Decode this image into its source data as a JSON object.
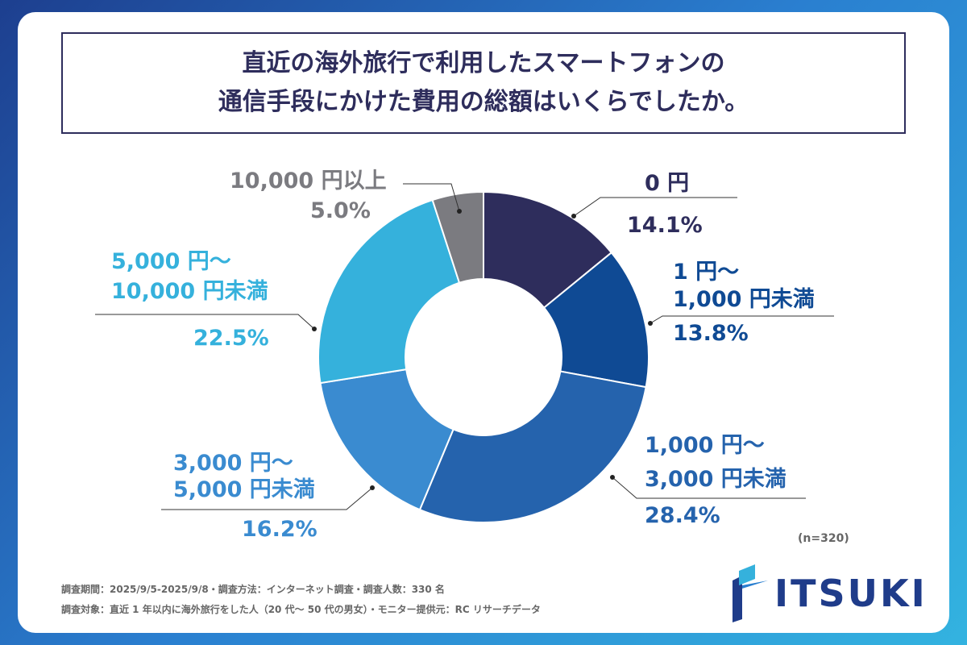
{
  "title": {
    "line1": "直近の海外旅行で利用したスマートフォンの",
    "line2": "通信手段にかけた費用の総額はいくらでしたか。"
  },
  "chart_data": {
    "type": "pie",
    "donut": true,
    "title": "直近の海外旅行で利用したスマートフォンの通信手段にかけた費用の総額はいくらでしたか。",
    "categories": [
      "0円",
      "1円〜1,000円未満",
      "1,000円〜3,000円未満",
      "3,000円〜5,000円未満",
      "5,000円〜10,000円未満",
      "10,000円以上"
    ],
    "values": [
      14.1,
      13.8,
      28.4,
      16.2,
      22.5,
      5.0
    ],
    "labels": [
      {
        "l1": "0 円",
        "l2": "",
        "pct": "14.1%"
      },
      {
        "l1": "1 円〜",
        "l2": "1,000 円未満",
        "pct": "13.8%"
      },
      {
        "l1": "1,000 円〜",
        "l2": "3,000 円未満",
        "pct": "28.4%"
      },
      {
        "l1": "3,000 円〜",
        "l2": "5,000 円未満",
        "pct": "16.2%"
      },
      {
        "l1": "5,000 円〜",
        "l2": "10,000 円未満",
        "pct": "22.5%"
      },
      {
        "l1": "10,000 円以上",
        "l2": "",
        "pct": "5.0%"
      }
    ],
    "colors": [
      "#2e2d5c",
      "#0f4a94",
      "#2563ad",
      "#3a8bd0",
      "#35b1dc",
      "#7b7b80"
    ]
  },
  "sample": "(n=320)",
  "notes": {
    "line1": "調査期間：2025/9/5-2025/9/8・調査方法：インターネット調査・調査人数：330 名",
    "line2": "調査対象：直近 1 年以内に海外旅行をした人（20 代〜 50 代の男女）・モニター提供元：RC リサーチデータ"
  },
  "logo": "ITSUKI"
}
